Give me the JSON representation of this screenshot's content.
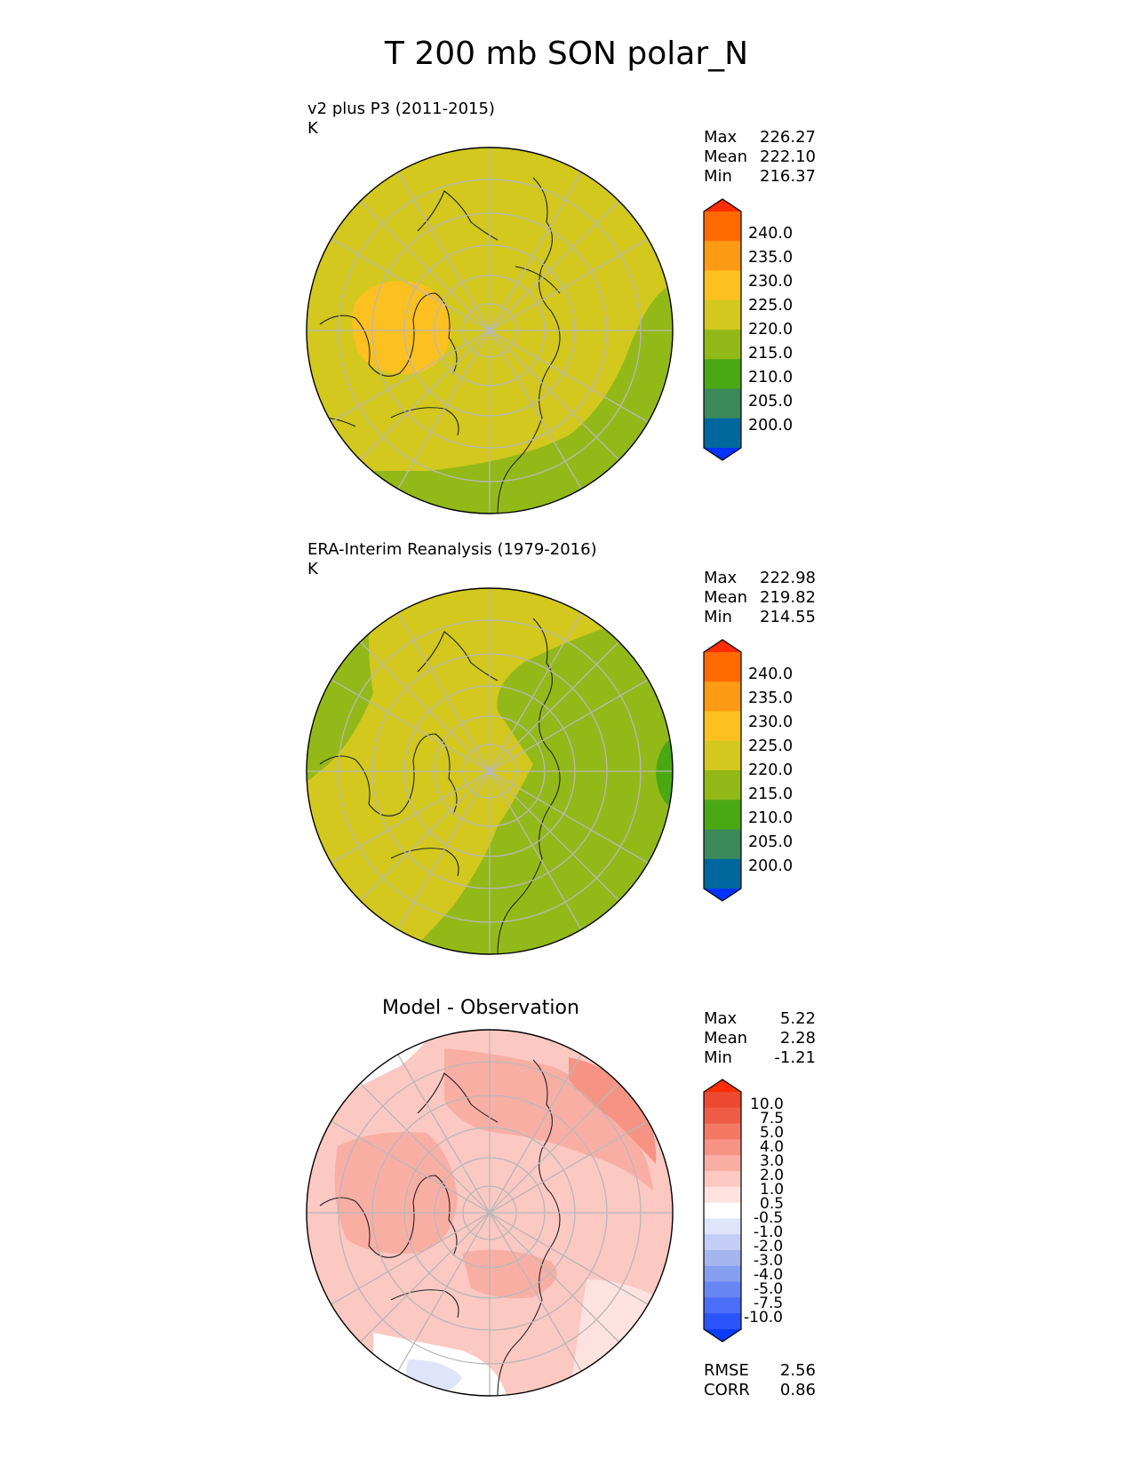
{
  "figure": {
    "title": "T 200 mb SON polar_N"
  },
  "panels": [
    {
      "title": "v2 plus P3 (2011-2015)",
      "units": "K",
      "stats": [
        {
          "label": "Max",
          "value": "226.27"
        },
        {
          "label": "Mean",
          "value": "222.10"
        },
        {
          "label": "Min",
          "value": "216.37"
        }
      ],
      "colorbar_labels": [
        "240.0",
        "235.0",
        "230.0",
        "225.0",
        "220.0",
        "215.0",
        "210.0",
        "205.0",
        "200.0"
      ]
    },
    {
      "title": "ERA-Interim Reanalysis (1979-2016)",
      "units": "K",
      "stats": [
        {
          "label": "Max",
          "value": "222.98"
        },
        {
          "label": "Mean",
          "value": "219.82"
        },
        {
          "label": "Min",
          "value": "214.55"
        }
      ],
      "colorbar_labels": [
        "240.0",
        "235.0",
        "230.0",
        "225.0",
        "220.0",
        "215.0",
        "210.0",
        "205.0",
        "200.0"
      ]
    },
    {
      "title": "Model - Observation",
      "stats": [
        {
          "label": "Max",
          "value": "5.22"
        },
        {
          "label": "Mean",
          "value": "2.28"
        },
        {
          "label": "Min",
          "value": "-1.21"
        }
      ],
      "colorbar_labels": [
        "10.0",
        "7.5",
        "5.0",
        "4.0",
        "3.0",
        "2.0",
        "1.0",
        "0.5",
        "-0.5",
        "-1.0",
        "-2.0",
        "-3.0",
        "-4.0",
        "-5.0",
        "-7.5",
        "-10.0"
      ],
      "extra_stats": [
        {
          "label": "RMSE",
          "value": "2.56"
        },
        {
          "label": "CORR",
          "value": "0.86"
        }
      ]
    }
  ],
  "colors": {
    "temp_colorbar": [
      "#0033ff",
      "#00689d",
      "#3c8a5a",
      "#4aa814",
      "#93b919",
      "#d2c81e",
      "#fcc020",
      "#ff9a14",
      "#ff6a00",
      "#ff2d00"
    ],
    "diff_colorbar": [
      "#0a3cfc",
      "#2b55fa",
      "#4a6ef7",
      "#6886f3",
      "#869eef",
      "#a4b6ed",
      "#c3cdf5",
      "#dfe4fb",
      "#ffffff",
      "#fde2e0",
      "#fbc8c2",
      "#f9aea4",
      "#f79384",
      "#f47965",
      "#f05d46",
      "#ee4a32",
      "#ff2d00"
    ]
  },
  "chart_data": [
    {
      "type": "heatmap",
      "title": "v2 plus P3 (2011-2015)",
      "projection": "north-polar-stereographic",
      "units": "K",
      "stats": {
        "max": 226.27,
        "mean": 222.1,
        "min": 216.37
      },
      "colorbar_levels": [
        200,
        205,
        210,
        215,
        220,
        225,
        230,
        235,
        240
      ],
      "colorbar_extend": "both",
      "regions": [
        {
          "range": [
            220,
            225
          ],
          "description": "dominant field"
        },
        {
          "range": [
            225,
            230
          ],
          "description": "warm patch over Greenland / Canadian archipelago"
        },
        {
          "range": [
            215,
            220
          ],
          "description": "band over Eurasia / North Pacific and edges"
        }
      ]
    },
    {
      "type": "heatmap",
      "title": "ERA-Interim Reanalysis (1979-2016)",
      "projection": "north-polar-stereographic",
      "units": "K",
      "stats": {
        "max": 222.98,
        "mean": 219.82,
        "min": 214.55
      },
      "colorbar_levels": [
        200,
        205,
        210,
        215,
        220,
        225,
        230,
        235,
        240
      ],
      "colorbar_extend": "both",
      "regions": [
        {
          "range": [
            220,
            225
          ],
          "description": "western hemisphere / North America / Greenland"
        },
        {
          "range": [
            215,
            220
          ],
          "description": "eastern hemisphere / Eurasia"
        },
        {
          "range": [
            210,
            215
          ],
          "description": "small patch at eastern rim"
        }
      ]
    },
    {
      "type": "heatmap",
      "title": "Model - Observation",
      "projection": "north-polar-stereographic",
      "stats": {
        "max": 5.22,
        "mean": 2.28,
        "min": -1.21,
        "rmse": 2.56,
        "corr": 0.86
      },
      "colorbar_levels": [
        -10.0,
        -7.5,
        -5.0,
        -4.0,
        -3.0,
        -2.0,
        -1.0,
        -0.5,
        0.5,
        1.0,
        2.0,
        3.0,
        4.0,
        5.0,
        7.5,
        10.0
      ],
      "colorbar_extend": "both",
      "regions": [
        {
          "range": [
            1,
            2
          ],
          "description": "broad background"
        },
        {
          "range": [
            2,
            4
          ],
          "description": "bands over North America, Arctic, Siberia"
        },
        {
          "range": [
            4,
            5
          ],
          "description": "maximum over eastern Asia / North Pacific"
        },
        {
          "range": [
            -1,
            0.5
          ],
          "description": "near-zero or slightly negative at lower rim and upper-left edge"
        }
      ]
    }
  ]
}
